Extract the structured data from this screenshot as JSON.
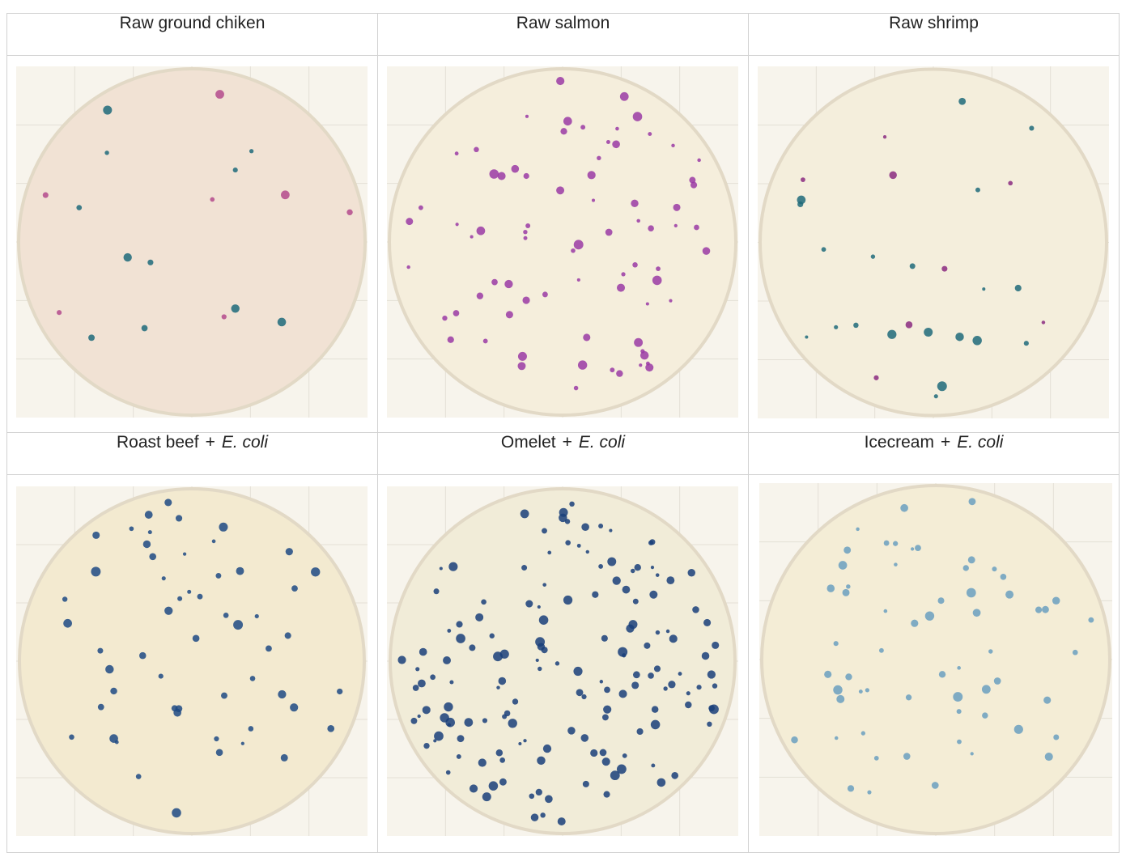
{
  "headers": {
    "row1": [
      "Raw ground chiken",
      "Raw salmon",
      "Raw shrimp"
    ],
    "row2": [
      {
        "food": "Roast beef",
        "plus": "+",
        "organism": "E. coli"
      },
      {
        "food": "Omelet",
        "plus": "+",
        "organism": "E. coli"
      },
      {
        "food": "Icecream",
        "plus": "+",
        "organism": "E. coli"
      }
    ]
  },
  "plates": [
    {
      "name": "raw-ground-chicken",
      "medium": "#f1e2d4",
      "colony_colors": [
        "#b44a8c",
        "#1e6a7a"
      ],
      "colonies": 18
    },
    {
      "name": "raw-salmon",
      "medium": "#f5eedc",
      "colony_colors": [
        "#9a3aa4"
      ],
      "colonies": 75
    },
    {
      "name": "raw-shrimp",
      "medium": "#f4eedc",
      "colony_colors": [
        "#8a2a80",
        "#1e6a7a"
      ],
      "colonies": 28
    },
    {
      "name": "roast-beef-ecoli",
      "medium": "#f3ead0",
      "colony_colors": [
        "#1d4a84"
      ],
      "colonies": 55
    },
    {
      "name": "omelet-ecoli",
      "medium": "#f1ecd8",
      "colony_colors": [
        "#1a3f7a"
      ],
      "colonies": 150
    },
    {
      "name": "icecream-ecoli",
      "medium": "#f4edd6",
      "colony_colors": [
        "#6a9fc0"
      ],
      "colonies": 60
    }
  ]
}
